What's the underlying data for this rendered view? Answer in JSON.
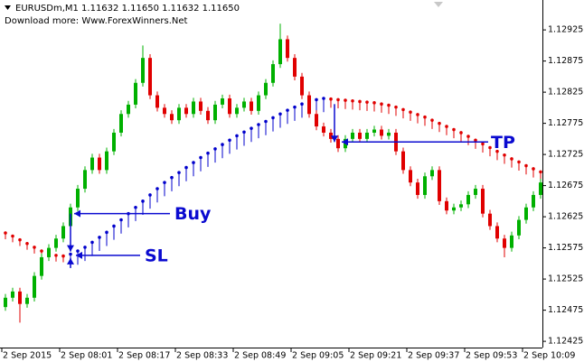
{
  "chart_data": {
    "type": "candlestick",
    "title": "EURUSDm,M1  1.11632 1.11650 1.11632 1.11650",
    "subtitle": "Download more: Www.ForexWinners.Net",
    "up_color": "#00b000",
    "down_color": "#e00000",
    "band_up_color": "#0000cc",
    "band_down_color": "#e00000",
    "ylim": [
      1.12415,
      1.12973
    ],
    "yticks": [
      1.12925,
      1.12875,
      1.12825,
      1.12775,
      1.12725,
      1.12675,
      1.12625,
      1.12575,
      1.12525,
      1.12475,
      1.12425
    ],
    "xticks": [
      {
        "value": 0,
        "label": "2 Sep 2015"
      },
      {
        "value": 8,
        "label": "2 Sep 08:01"
      },
      {
        "value": 16,
        "label": "2 Sep 08:17"
      },
      {
        "value": 24,
        "label": "2 Sep 08:33"
      },
      {
        "value": 32,
        "label": "2 Sep 08:49"
      },
      {
        "value": 40,
        "label": "2 Sep 09:05"
      },
      {
        "value": 48,
        "label": "2 Sep 09:21"
      },
      {
        "value": 56,
        "label": "2 Sep 09:37"
      },
      {
        "value": 64,
        "label": "2 Sep 09:53"
      },
      {
        "value": 72,
        "label": "2 Sep 10:09"
      }
    ],
    "open": [
      1.1248,
      1.12495,
      1.12505,
      1.12485,
      1.12495,
      1.1253,
      1.1256,
      1.12575,
      1.1259,
      1.1261,
      1.1264,
      1.1267,
      1.127,
      1.1272,
      1.127,
      1.1273,
      1.1276,
      1.1279,
      1.12805,
      1.1284,
      1.1288,
      1.1282,
      1.128,
      1.1279,
      1.1278,
      1.128,
      1.1279,
      1.1281,
      1.12795,
      1.1278,
      1.12805,
      1.12815,
      1.1279,
      1.128,
      1.1281,
      1.12795,
      1.1282,
      1.1284,
      1.1287,
      1.1291,
      1.1288,
      1.1285,
      1.1282,
      1.1279,
      1.1277,
      1.1276,
      1.1275,
      1.12735,
      1.1275,
      1.1276,
      1.1275,
      1.1276,
      1.12765,
      1.12755,
      1.1276,
      1.1273,
      1.127,
      1.1268,
      1.1266,
      1.1269,
      1.127,
      1.1265,
      1.12635,
      1.1264,
      1.12645,
      1.1266,
      1.1267,
      1.1263,
      1.1261,
      1.1259,
      1.12575,
      1.12595,
      1.1262,
      1.1264,
      1.1266
    ],
    "high": [
      1.12501,
      1.12511,
      1.12511,
      1.12501,
      1.12536,
      1.12566,
      1.12581,
      1.12596,
      1.12616,
      1.12646,
      1.12676,
      1.12706,
      1.12726,
      1.12726,
      1.12736,
      1.12766,
      1.12796,
      1.12811,
      1.12846,
      1.129,
      1.12886,
      1.12826,
      1.12806,
      1.12796,
      1.12806,
      1.12806,
      1.12816,
      1.12816,
      1.12801,
      1.12811,
      1.12821,
      1.12821,
      1.12806,
      1.12816,
      1.12816,
      1.12826,
      1.12846,
      1.12876,
      1.12935,
      1.12916,
      1.12886,
      1.12856,
      1.12826,
      1.12796,
      1.12776,
      1.12766,
      1.12756,
      1.12756,
      1.12766,
      1.12766,
      1.12766,
      1.12771,
      1.12771,
      1.12766,
      1.12766,
      1.12736,
      1.12706,
      1.12686,
      1.12696,
      1.12706,
      1.12706,
      1.12656,
      1.12646,
      1.12651,
      1.12666,
      1.12676,
      1.12676,
      1.12636,
      1.12616,
      1.12596,
      1.12601,
      1.12626,
      1.12646,
      1.12666,
      1.12686
    ],
    "low": [
      1.12474,
      1.12489,
      1.12455,
      1.12479,
      1.12489,
      1.12524,
      1.12554,
      1.12569,
      1.12584,
      1.12604,
      1.12634,
      1.12664,
      1.12694,
      1.12694,
      1.12694,
      1.12724,
      1.12754,
      1.12784,
      1.12799,
      1.12834,
      1.12814,
      1.12794,
      1.12784,
      1.12774,
      1.12774,
      1.12784,
      1.12784,
      1.12789,
      1.12774,
      1.12774,
      1.12799,
      1.12784,
      1.12784,
      1.12794,
      1.12789,
      1.12789,
      1.12814,
      1.12834,
      1.12864,
      1.12874,
      1.12844,
      1.12814,
      1.12784,
      1.12764,
      1.12754,
      1.12744,
      1.12729,
      1.12729,
      1.12744,
      1.12744,
      1.12744,
      1.12754,
      1.12749,
      1.12749,
      1.12724,
      1.12694,
      1.12674,
      1.12654,
      1.12654,
      1.12684,
      1.12644,
      1.12629,
      1.12629,
      1.12634,
      1.12639,
      1.12654,
      1.12624,
      1.12604,
      1.12584,
      1.1256,
      1.12569,
      1.12589,
      1.12614,
      1.12634,
      1.12654
    ],
    "close": [
      1.12495,
      1.12505,
      1.12485,
      1.12495,
      1.1253,
      1.1256,
      1.12575,
      1.1259,
      1.1261,
      1.1264,
      1.1267,
      1.127,
      1.1272,
      1.127,
      1.1273,
      1.1276,
      1.1279,
      1.12805,
      1.1284,
      1.1288,
      1.1282,
      1.128,
      1.1279,
      1.1278,
      1.128,
      1.1279,
      1.1281,
      1.12795,
      1.1278,
      1.12805,
      1.12815,
      1.1279,
      1.128,
      1.1281,
      1.12795,
      1.1282,
      1.1284,
      1.1287,
      1.1291,
      1.1288,
      1.1285,
      1.1282,
      1.1279,
      1.1277,
      1.1276,
      1.1275,
      1.12735,
      1.1275,
      1.1276,
      1.1275,
      1.1276,
      1.12765,
      1.12755,
      1.1276,
      1.1273,
      1.127,
      1.1268,
      1.1266,
      1.1269,
      1.127,
      1.1265,
      1.12635,
      1.1264,
      1.12645,
      1.1266,
      1.1267,
      1.1263,
      1.1261,
      1.1259,
      1.12575,
      1.12595,
      1.1262,
      1.1264,
      1.1266,
      1.1268
    ],
    "ma": [
      1.12599,
      1.12594,
      1.12588,
      1.12582,
      1.12576,
      1.1257,
      1.12566,
      1.12563,
      1.12562,
      1.12565,
      1.1257,
      1.12576,
      1.12584,
      1.12592,
      1.126,
      1.1261,
      1.1262,
      1.1263,
      1.1264,
      1.1265,
      1.1266,
      1.1267,
      1.1268,
      1.12688,
      1.12696,
      1.12704,
      1.12712,
      1.1272,
      1.12727,
      1.12734,
      1.12741,
      1.12748,
      1.12755,
      1.12761,
      1.12767,
      1.12773,
      1.12778,
      1.12784,
      1.1279,
      1.12796,
      1.12801,
      1.12806,
      1.1281,
      1.12813,
      1.12815,
      1.12814,
      1.12813,
      1.12812,
      1.12811,
      1.1281,
      1.12809,
      1.12808,
      1.12806,
      1.12804,
      1.12801,
      1.12797,
      1.12793,
      1.12789,
      1.12785,
      1.1278,
      1.12775,
      1.1277,
      1.12765,
      1.1276,
      1.12754,
      1.12748,
      1.12742,
      1.12736,
      1.1273,
      1.12724,
      1.12718,
      1.12713,
      1.12707,
      1.12702,
      1.12697
    ],
    "band_lower": [
      1.12589,
      1.12584,
      1.12578,
      1.12572,
      1.12566,
      1.1256,
      1.12556,
      1.12553,
      1.12552,
      1.12543,
      1.12548,
      1.12554,
      1.12562,
      1.1257,
      1.12578,
      1.12588,
      1.12598,
      1.12608,
      1.12618,
      1.12628,
      1.12638,
      1.12648,
      1.12658,
      1.12666,
      1.12674,
      1.12682,
      1.1269,
      1.12698,
      1.12705,
      1.12712,
      1.12719,
      1.12726,
      1.12733,
      1.12739,
      1.12745,
      1.12751,
      1.12756,
      1.12762,
      1.12768,
      1.12774,
      1.12779,
      1.12784,
      1.12788,
      1.12791,
      1.12793,
      1.128,
      1.12799,
      1.12798,
      1.12797,
      1.12796,
      1.12795,
      1.12794,
      1.12792,
      1.1279,
      1.12787,
      1.12783,
      1.12779,
      1.12775,
      1.12771,
      1.12766,
      1.12761,
      1.12756,
      1.12751,
      1.12746,
      1.1274,
      1.12734,
      1.12728,
      1.12722,
      1.12716,
      1.1271,
      1.12704,
      1.12699,
      1.12693,
      1.12688,
      1.12683
    ],
    "annotations": [
      {
        "text": "Buy",
        "value": 1.1263
      },
      {
        "text": "SL",
        "value": 1.12563
      },
      {
        "text": "TP",
        "value": 1.12745
      }
    ]
  }
}
